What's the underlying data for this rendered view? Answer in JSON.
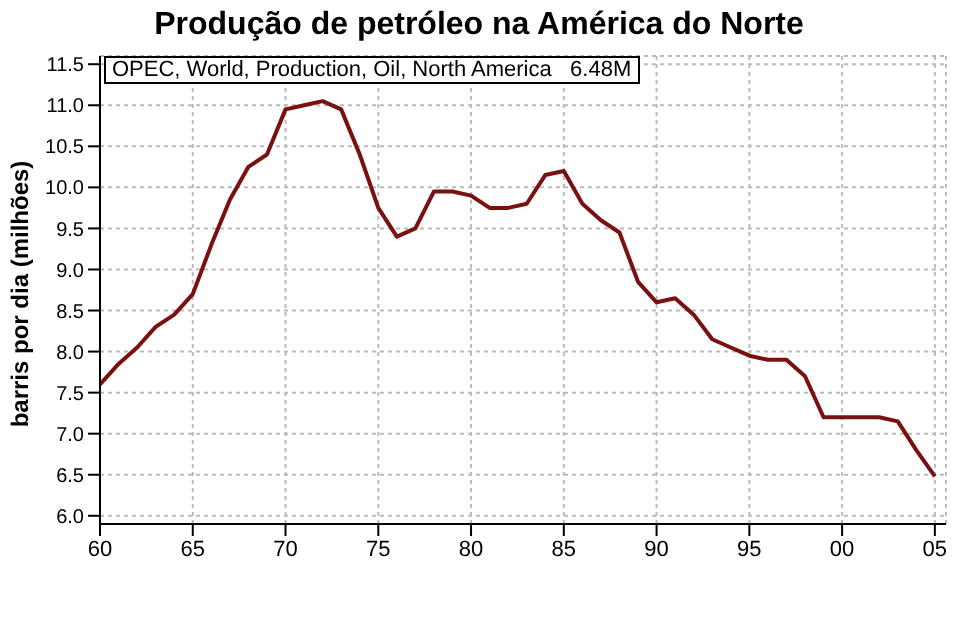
{
  "chart_data": {
    "type": "line",
    "title": "Produção de petróleo na América do Norte",
    "ylabel": "barris por dia (milhões)",
    "annotations": [
      "OPEC, World, Production, Oil, North America   6.48M"
    ],
    "x": [
      1960,
      1961,
      1962,
      1963,
      1964,
      1965,
      1966,
      1967,
      1968,
      1969,
      1970,
      1971,
      1972,
      1973,
      1974,
      1975,
      1976,
      1977,
      1978,
      1979,
      1980,
      1981,
      1982,
      1983,
      1984,
      1985,
      1986,
      1987,
      1988,
      1989,
      1990,
      1991,
      1992,
      1993,
      1994,
      1995,
      1996,
      1997,
      1998,
      1999,
      2000,
      2001,
      2002,
      2003,
      2004,
      2005
    ],
    "series": [
      {
        "color": "#7b1010",
        "values": [
          7.6,
          7.85,
          8.05,
          8.3,
          8.45,
          8.7,
          9.3,
          9.85,
          10.25,
          10.4,
          10.95,
          11.0,
          11.05,
          10.95,
          10.4,
          9.75,
          9.4,
          9.5,
          9.95,
          9.95,
          9.9,
          9.75,
          9.75,
          9.8,
          10.15,
          10.2,
          9.8,
          9.6,
          9.45,
          8.85,
          8.6,
          8.65,
          8.45,
          8.15,
          8.05,
          7.95,
          7.9,
          7.9,
          7.7,
          7.2,
          7.2,
          7.2,
          7.2,
          7.15,
          6.8,
          6.48
        ]
      }
    ],
    "xlim": [
      1960,
      2005.6
    ],
    "xticks": [
      {
        "value": 1960,
        "label": "60"
      },
      {
        "value": 1965,
        "label": "65"
      },
      {
        "value": 1970,
        "label": "70"
      },
      {
        "value": 1975,
        "label": "75"
      },
      {
        "value": 1980,
        "label": "80"
      },
      {
        "value": 1985,
        "label": "85"
      },
      {
        "value": 1990,
        "label": "90"
      },
      {
        "value": 1995,
        "label": "95"
      },
      {
        "value": 2000,
        "label": "00"
      },
      {
        "value": 2005,
        "label": "05"
      }
    ],
    "ylim": [
      5.9,
      11.6
    ],
    "yticks": [
      {
        "value": 6,
        "label": "6.0"
      },
      {
        "value": 6.5,
        "label": "6.5"
      },
      {
        "value": 7,
        "label": "7.0"
      },
      {
        "value": 7.5,
        "label": "7.5"
      },
      {
        "value": 8,
        "label": "8.0"
      },
      {
        "value": 8.5,
        "label": "8.5"
      },
      {
        "value": 9,
        "label": "9.0"
      },
      {
        "value": 9.5,
        "label": "9.5"
      },
      {
        "value": 10,
        "label": "10.0"
      },
      {
        "value": 10.5,
        "label": "10.5"
      },
      {
        "value": 11,
        "label": "11.0"
      },
      {
        "value": 11.5,
        "label": "11.5"
      }
    ],
    "grid": true,
    "marker": "none",
    "line_style": "solid"
  }
}
